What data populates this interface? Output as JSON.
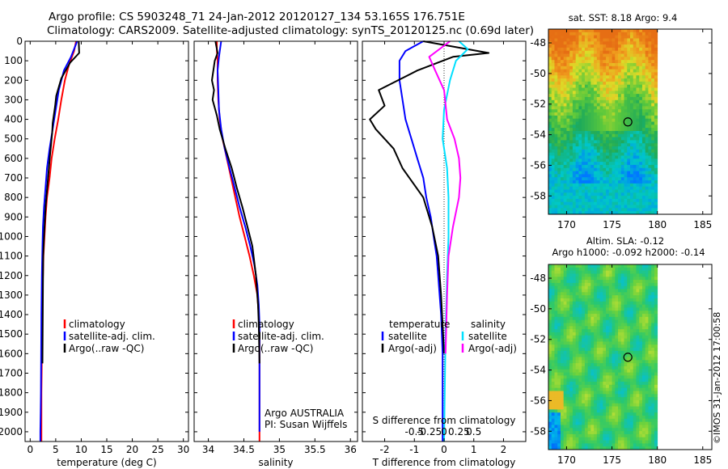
{
  "header": {
    "line1": "Argo profile: CS 5903248_71 24-Jan-2012 20120127_134 53.165S 176.751E",
    "line2": "Climatology: CARS2009. Satellite-adjusted climatology: synTS_20120125.nc (0.69d later)"
  },
  "watermark": "©IMOS 31-Jan-2012 17:00:58",
  "colors": {
    "climatology": "#ff0000",
    "satellite": "#0000ff",
    "argo": "#000000",
    "sat_salinity": "#00e0ff",
    "argo_salinity": "#ff00ff"
  },
  "chart_data": [
    {
      "type": "line",
      "panel": "temperature",
      "xlabel": "temperature (deg C)",
      "xlim": [
        -1,
        31
      ],
      "xticks": [
        0,
        5,
        10,
        15,
        20,
        25,
        30
      ],
      "xtick_labels": [
        "0",
        "5",
        "10",
        "15",
        "20",
        "25",
        "30"
      ],
      "ylim": [
        0,
        2050
      ],
      "yticks": [
        0,
        100,
        200,
        300,
        400,
        500,
        600,
        700,
        800,
        900,
        1000,
        1100,
        1200,
        1300,
        1400,
        1500,
        1600,
        1700,
        1800,
        1900,
        2000
      ],
      "ytick_labels": [
        "0",
        "100",
        "200",
        "300",
        "400",
        "500",
        "600",
        "700",
        "800",
        "900",
        "1000",
        "1100",
        "1200",
        "1300",
        "1400",
        "1500",
        "1600",
        "1700",
        "1800",
        "1900",
        "2000"
      ],
      "legend": [
        "climatology",
        "satellite-adj. clim.",
        "Argo(..raw -QC)"
      ],
      "series": [
        {
          "name": "climatology",
          "color": "#ff0000",
          "x": [
            9.0,
            8.6,
            7.6,
            6.8,
            6.1,
            5.5,
            4.8,
            4.2,
            3.8,
            3.3,
            3.0,
            2.8,
            2.6,
            2.5,
            2.4,
            2.35,
            2.3,
            2.3,
            2.25,
            2.2,
            2.2
          ],
          "y": [
            0,
            50,
            120,
            200,
            300,
            400,
            500,
            600,
            700,
            800,
            900,
            1000,
            1100,
            1200,
            1300,
            1400,
            1500,
            1600,
            1700,
            1800,
            2050
          ]
        },
        {
          "name": "satellite-adj. clim.",
          "color": "#0000ff",
          "x": [
            9.2,
            8.0,
            6.6,
            5.6,
            5.0,
            4.4,
            3.8,
            3.3,
            3.0,
            2.7,
            2.5,
            2.4,
            2.3,
            2.2,
            2.15,
            2.1,
            2.05,
            2.0,
            2.0
          ],
          "y": [
            0,
            80,
            150,
            250,
            350,
            450,
            550,
            650,
            750,
            850,
            950,
            1050,
            1200,
            1400,
            1600,
            1800,
            1900,
            2000,
            2050
          ]
        },
        {
          "name": "Argo(..raw -QC)",
          "color": "#000000",
          "x": [
            9.5,
            9.6,
            7.8,
            6.1,
            5.1,
            4.9,
            4.4,
            4.3,
            3.9,
            3.5,
            3.0,
            2.7,
            2.55,
            2.5,
            2.45,
            2.4
          ],
          "y": [
            0,
            60,
            110,
            190,
            280,
            330,
            420,
            470,
            580,
            700,
            850,
            1000,
            1100,
            1250,
            1450,
            1650
          ]
        }
      ]
    },
    {
      "type": "line",
      "panel": "salinity",
      "xlabel": "salinity",
      "xlim": [
        33.8,
        36.1
      ],
      "xticks": [
        34,
        34.5,
        35,
        35.5,
        36
      ],
      "xtick_labels": [
        "34",
        "34.5",
        "35",
        "35.5",
        "36"
      ],
      "ylim": [
        0,
        2050
      ],
      "legend": [
        "climatology",
        "satellite-adj. clim.",
        "Argo(..raw -QC)"
      ],
      "annotation": [
        "Argo AUSTRALIA",
        "PI: Susan Wijffels"
      ],
      "series": [
        {
          "name": "climatology",
          "color": "#ff0000",
          "x": [
            34.12,
            34.12,
            34.13,
            34.13,
            34.14,
            34.16,
            34.2,
            34.26,
            34.32,
            34.38,
            34.44,
            34.51,
            34.58,
            34.64,
            34.69,
            34.71,
            34.72,
            34.72,
            34.72,
            34.72
          ],
          "y": [
            0,
            50,
            100,
            200,
            300,
            400,
            500,
            600,
            700,
            800,
            900,
            1000,
            1100,
            1200,
            1300,
            1400,
            1500,
            1700,
            1900,
            2050
          ]
        },
        {
          "name": "satellite-adj. clim.",
          "color": "#0000ff",
          "x": [
            34.18,
            34.15,
            34.13,
            34.14,
            34.15,
            34.18,
            34.23,
            34.3,
            34.37,
            34.44,
            34.52,
            34.59,
            34.65,
            34.69,
            34.71,
            34.72,
            34.72,
            34.72
          ],
          "y": [
            0,
            80,
            150,
            250,
            350,
            450,
            550,
            650,
            750,
            850,
            950,
            1050,
            1150,
            1250,
            1350,
            1450,
            1600,
            2000
          ]
        },
        {
          "name": "Argo(..raw -QC)",
          "color": "#000000",
          "x": [
            34.1,
            34.13,
            34.09,
            34.05,
            34.08,
            34.06,
            34.12,
            34.16,
            34.24,
            34.33,
            34.4,
            34.48,
            34.55,
            34.62,
            34.67,
            34.7,
            34.71,
            34.72
          ],
          "y": [
            0,
            60,
            100,
            200,
            250,
            300,
            380,
            450,
            550,
            650,
            750,
            850,
            950,
            1050,
            1200,
            1350,
            1450,
            1650
          ]
        }
      ]
    },
    {
      "type": "line",
      "panel": "differences",
      "xlabel": "T difference from climatology",
      "xlabel2": "S difference from climatology",
      "xlim": [
        -2.75,
        2.75
      ],
      "xticks": [
        -2,
        -1,
        0,
        1,
        2
      ],
      "xtick_labels": [
        "-2",
        "-1",
        "0",
        "1",
        "2"
      ],
      "s_xticks": [
        -1,
        -0.5,
        0,
        0.5,
        1
      ],
      "s_xtick_labels": [
        "-0.5",
        "-0.25",
        "0",
        "0.25",
        "0.5"
      ],
      "ylim": [
        0,
        2050
      ],
      "legend_temperature": [
        "temperature",
        "satellite",
        "Argo(-adj)"
      ],
      "legend_salinity": [
        "salinity",
        "satellite",
        "Argo(-adj)"
      ],
      "series": [
        {
          "name": "satellite",
          "color": "#0000ff",
          "x": [
            -0.7,
            -1.3,
            -1.5,
            -1.5,
            -1.4,
            -1.3,
            -1.1,
            -0.9,
            -0.7,
            -0.6,
            -0.45,
            -0.35,
            -0.25,
            -0.2,
            -0.15,
            -0.1,
            -0.05,
            -0.05
          ],
          "y": [
            0,
            50,
            100,
            200,
            300,
            400,
            500,
            600,
            700,
            800,
            900,
            1000,
            1100,
            1200,
            1300,
            1400,
            1600,
            2050
          ]
        },
        {
          "name": "Argo(-adj)",
          "color": "#000000",
          "x": [
            -0.7,
            1.5,
            0.3,
            -0.9,
            -2.2,
            -2.0,
            -2.5,
            -2.3,
            -1.7,
            -1.4,
            -0.7,
            -0.4,
            -0.2,
            -0.1,
            0.0
          ],
          "y": [
            0,
            60,
            80,
            150,
            250,
            330,
            400,
            450,
            550,
            650,
            800,
            950,
            1100,
            1300,
            1600
          ]
        },
        {
          "name": "satellite",
          "color": "#00e0ff",
          "x": [
            0.5,
            0.8,
            0.4,
            0.2,
            0.0,
            -0.05,
            0.1,
            0.15,
            0.15,
            0.1,
            0.05,
            0.0
          ],
          "y": [
            0,
            40,
            100,
            200,
            350,
            500,
            650,
            800,
            1000,
            1200,
            1500,
            2050
          ]
        },
        {
          "name": "Argo(-adj)",
          "color": "#ff00ff",
          "x": [
            0.2,
            -0.5,
            -0.3,
            0.0,
            0.1,
            0.35,
            0.5,
            0.55,
            0.5,
            0.3,
            0.15,
            0.1,
            0.05
          ],
          "y": [
            0,
            80,
            150,
            250,
            400,
            500,
            600,
            700,
            800,
            950,
            1100,
            1300,
            1600
          ]
        }
      ]
    },
    {
      "type": "heatmap",
      "panel": "sst_map",
      "title": "sat. SST: 8.18 Argo: 9.4",
      "xlim": [
        168,
        186
      ],
      "ylim": [
        -59.2,
        -47.1
      ],
      "xticks": [
        170,
        175,
        180,
        185
      ],
      "xtick_labels": [
        "170",
        "175",
        "180",
        "185"
      ],
      "yticks": [
        -48,
        -50,
        -52,
        -54,
        -56,
        -58
      ],
      "ytick_labels": [
        "-48",
        "-50",
        "-52",
        "-54",
        "-56",
        "-58"
      ],
      "data_extent_lon": [
        168,
        180
      ],
      "float_position": {
        "lon": 176.751,
        "lat": -53.165
      }
    },
    {
      "type": "heatmap",
      "panel": "sla_map",
      "title": "Altim. SLA: -0.12",
      "subtitle": "Argo h1000: -0.092 h2000: -0.14",
      "xlim": [
        168,
        186
      ],
      "ylim": [
        -59.2,
        -47.1
      ],
      "xticks": [
        170,
        175,
        180,
        185
      ],
      "xtick_labels": [
        "170",
        "175",
        "180",
        "185"
      ],
      "yticks": [
        -48,
        -50,
        -52,
        -54,
        -56,
        -58
      ],
      "ytick_labels": [
        "-48",
        "-50",
        "-52",
        "-54",
        "-56",
        "-58"
      ],
      "data_extent_lon": [
        168,
        180
      ],
      "float_position": {
        "lon": 176.751,
        "lat": -53.165
      }
    }
  ]
}
